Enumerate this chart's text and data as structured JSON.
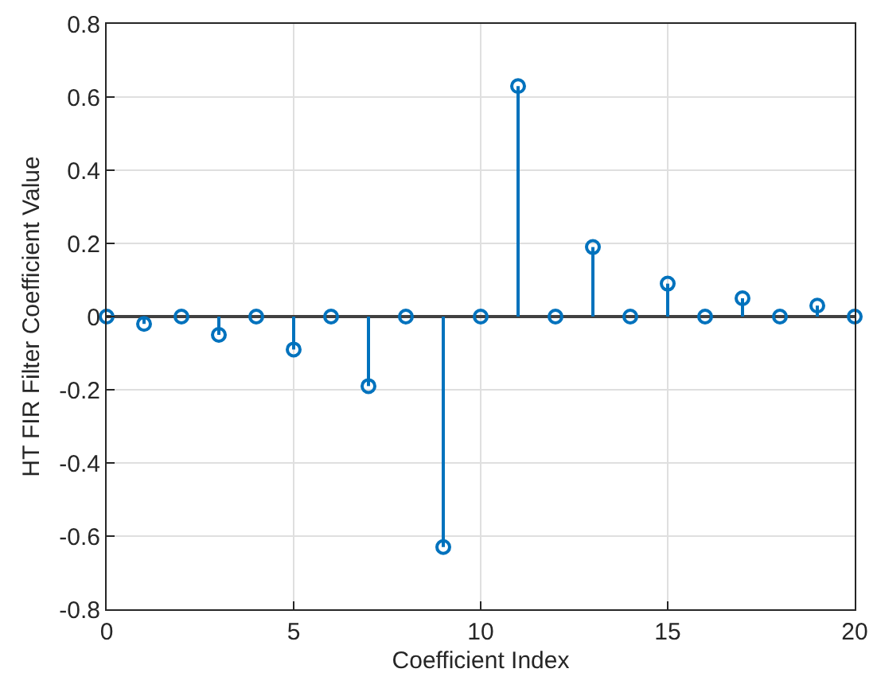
{
  "chart_data": {
    "type": "lollipop",
    "xlabel": "Coefficient Index",
    "ylabel": "HT FIR Filter Coefficient Value",
    "x": [
      0,
      1,
      2,
      3,
      4,
      5,
      6,
      7,
      8,
      9,
      10,
      11,
      12,
      13,
      14,
      15,
      16,
      17,
      18,
      19,
      20
    ],
    "values": [
      0,
      -0.02,
      0,
      -0.05,
      0,
      -0.09,
      0,
      -0.19,
      0,
      -0.63,
      0,
      0.63,
      0,
      0.19,
      0,
      0.09,
      0,
      0.05,
      0,
      0.03,
      0
    ],
    "color": "#0072bd",
    "marker": "circle",
    "grid": true,
    "xlim": [
      0,
      20
    ],
    "xticks": [
      0,
      5,
      10,
      15,
      20
    ],
    "ylim": [
      -0.8,
      0.8
    ],
    "yticks": [
      -0.8,
      -0.6,
      -0.4,
      -0.2,
      0,
      0.2,
      0.4,
      0.6,
      0.8
    ]
  }
}
